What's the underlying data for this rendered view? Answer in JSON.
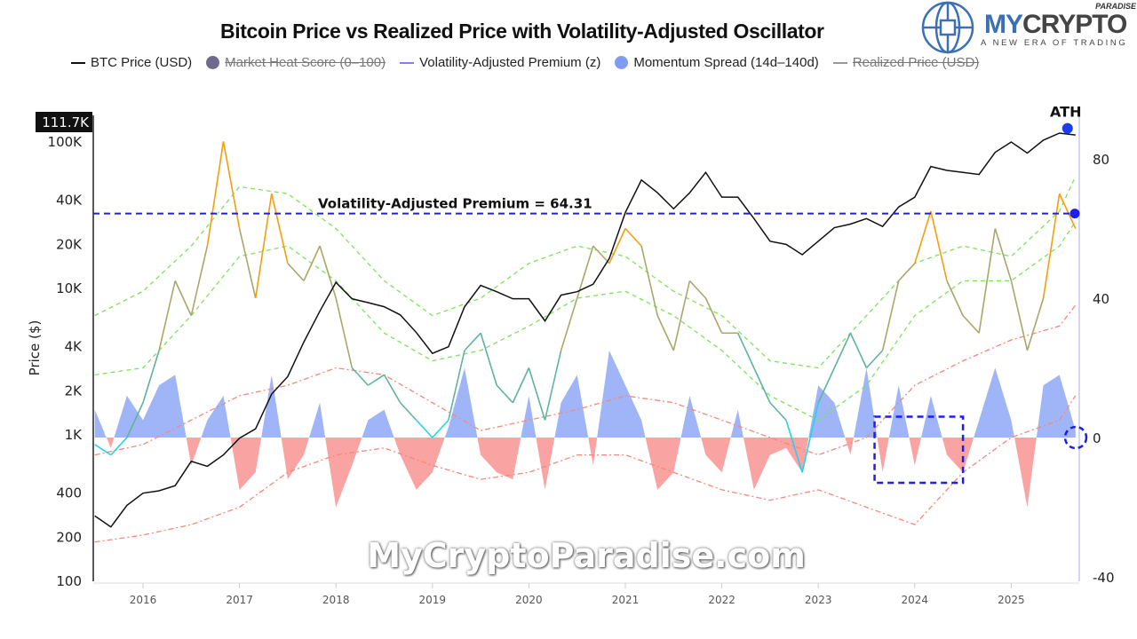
{
  "title": "Bitcoin Price vs Realized Price with Volatility-Adjusted Oscillator",
  "legend": [
    {
      "label": "BTC Price (USD)",
      "swatch": "line",
      "color": "#111111",
      "hidden": false
    },
    {
      "label": "Market Heat Score (0–100)",
      "swatch": "dot",
      "color": "#6e6a8e",
      "hidden": true
    },
    {
      "label": "Volatility-Adjusted Premium (z)",
      "swatch": "line",
      "color": "#8a7cf0",
      "hidden": false
    },
    {
      "label": "Momentum Spread (14d–140d)",
      "swatch": "dot",
      "color": "#7f9cf5",
      "hidden": false
    },
    {
      "label": "Realized Price (USD)",
      "swatch": "line",
      "color": "#999999",
      "hidden": true
    }
  ],
  "logo": {
    "brand_a": "MY",
    "brand_b": "CRYPTO",
    "super": "PARADISE",
    "tagline": "A NEW ERA OF TRADING"
  },
  "watermark": "MyCryptoParadise.com",
  "chart_data": {
    "type": "line",
    "ylabel": "Price ($)",
    "y_left": {
      "scale": "log",
      "range": [
        100,
        133000
      ],
      "ticks": [
        100,
        200,
        400,
        1000,
        2000,
        4000,
        10000,
        20000,
        40000,
        100000
      ],
      "tick_labels": [
        "100",
        "200",
        "400",
        "1K",
        "2K",
        "4K",
        "10K",
        "20K",
        "40K",
        "100K"
      ]
    },
    "y_right": {
      "scale": "linear",
      "range": [
        -40,
        89
      ],
      "ticks": [
        -40,
        0,
        40,
        80
      ],
      "tick_labels": [
        "-40",
        "0",
        "40",
        "80"
      ]
    },
    "x_ticks": [
      "2016",
      "2017",
      "2018",
      "2019",
      "2020",
      "2021",
      "2022",
      "2023",
      "2024",
      "2025"
    ],
    "x_range": [
      "2015-07",
      "2025-09"
    ],
    "grid": false,
    "legend_position": "top",
    "x": [
      "2015-07",
      "2015-09",
      "2015-11",
      "2016-01",
      "2016-03",
      "2016-05",
      "2016-07",
      "2016-09",
      "2016-11",
      "2017-01",
      "2017-03",
      "2017-05",
      "2017-07",
      "2017-09",
      "2017-11",
      "2018-01",
      "2018-03",
      "2018-05",
      "2018-07",
      "2018-09",
      "2018-11",
      "2019-01",
      "2019-03",
      "2019-05",
      "2019-07",
      "2019-09",
      "2019-11",
      "2020-01",
      "2020-03",
      "2020-05",
      "2020-07",
      "2020-09",
      "2020-11",
      "2021-01",
      "2021-03",
      "2021-05",
      "2021-07",
      "2021-09",
      "2021-11",
      "2022-01",
      "2022-03",
      "2022-05",
      "2022-07",
      "2022-09",
      "2022-11",
      "2023-01",
      "2023-03",
      "2023-05",
      "2023-07",
      "2023-09",
      "2023-11",
      "2024-01",
      "2024-03",
      "2024-05",
      "2024-07",
      "2024-09",
      "2024-11",
      "2025-01",
      "2025-03",
      "2025-05",
      "2025-07",
      "2025-09"
    ],
    "series": [
      {
        "name": "BTC Price (USD)",
        "axis": "left",
        "color": "#111111",
        "values": [
          280,
          235,
          330,
          400,
          415,
          450,
          660,
          610,
          730,
          950,
          1100,
          1900,
          2500,
          4300,
          7000,
          11000,
          8500,
          8000,
          7500,
          6600,
          5000,
          3600,
          4000,
          7500,
          10500,
          9500,
          8500,
          8500,
          6000,
          9000,
          9500,
          10700,
          16000,
          33000,
          55000,
          45000,
          35000,
          45000,
          62000,
          42000,
          42000,
          30000,
          21000,
          20000,
          17000,
          21000,
          26000,
          27500,
          30000,
          26500,
          36000,
          42000,
          68000,
          64000,
          62000,
          60000,
          85000,
          100000,
          84000,
          103000,
          115000,
          111700
        ]
      },
      {
        "name": "Volatility-Adjusted Premium (z)",
        "axis": "right",
        "color_scale": [
          "#22d3ee",
          "#5fb3a0",
          "#a8a86a",
          "#f59e0b"
        ],
        "values": [
          -2,
          -5,
          0,
          10,
          25,
          45,
          35,
          55,
          85,
          60,
          40,
          70,
          50,
          45,
          55,
          40,
          20,
          15,
          18,
          10,
          5,
          0,
          5,
          25,
          30,
          15,
          10,
          20,
          5,
          25,
          40,
          55,
          50,
          60,
          55,
          35,
          25,
          45,
          40,
          30,
          30,
          20,
          10,
          5,
          -10,
          10,
          20,
          30,
          20,
          25,
          45,
          50,
          65,
          45,
          35,
          30,
          60,
          45,
          25,
          40,
          70,
          60
        ]
      },
      {
        "name": "Momentum Spread (14d–140d)",
        "axis": "right",
        "color_pos": "#7f9cf5",
        "color_neg": "#f87171",
        "values": [
          8,
          -3,
          12,
          5,
          15,
          18,
          -8,
          5,
          12,
          -15,
          -10,
          18,
          -12,
          -5,
          10,
          -20,
          -8,
          5,
          8,
          -5,
          -15,
          -10,
          3,
          20,
          -5,
          -10,
          -12,
          12,
          -15,
          10,
          18,
          -8,
          25,
          15,
          5,
          -15,
          -10,
          12,
          -5,
          -10,
          8,
          -15,
          -5,
          -3,
          -10,
          15,
          10,
          -5,
          20,
          -10,
          15,
          -8,
          12,
          -5,
          -10,
          5,
          20,
          5,
          -20,
          15,
          18,
          2
        ]
      }
    ],
    "bands": {
      "x": [
        "2015-07",
        "2016-01",
        "2016-07",
        "2017-01",
        "2017-07",
        "2018-01",
        "2018-07",
        "2019-01",
        "2019-07",
        "2020-01",
        "2020-07",
        "2021-01",
        "2021-07",
        "2022-01",
        "2022-07",
        "2023-01",
        "2023-07",
        "2024-01",
        "2024-07",
        "2025-01",
        "2025-07",
        "2025-09"
      ],
      "green_color": "#7ee35a",
      "red_color": "#f8877a",
      "green_upper": [
        35,
        42,
        55,
        72,
        70,
        60,
        45,
        35,
        40,
        50,
        55,
        52,
        42,
        35,
        22,
        20,
        35,
        50,
        55,
        52,
        65,
        75
      ],
      "green_lower": [
        18,
        20,
        35,
        52,
        55,
        45,
        30,
        22,
        25,
        32,
        40,
        42,
        35,
        25,
        12,
        5,
        15,
        35,
        45,
        45,
        55,
        62
      ],
      "red_upper": [
        -5,
        -2,
        5,
        12,
        15,
        20,
        18,
        10,
        2,
        5,
        8,
        12,
        10,
        5,
        0,
        -5,
        0,
        15,
        22,
        28,
        32,
        38
      ],
      "red_lower": [
        -30,
        -28,
        -25,
        -20,
        -10,
        -5,
        -3,
        -8,
        -12,
        -10,
        -5,
        -5,
        -10,
        -15,
        -18,
        -15,
        -20,
        -25,
        -10,
        0,
        5,
        12
      ]
    },
    "annotations": {
      "premium_line": {
        "label": "Volatility-Adjusted Premium = 64.31",
        "value": 64.31,
        "color": "#1d1df0"
      },
      "ath": {
        "label": "ATH",
        "date": "2025-08",
        "value": 124000,
        "color": "#1d3cf0"
      },
      "current_price_tag": "111.7K",
      "zero_label": "0",
      "highlight_box": {
        "x": [
          "2023-08",
          "2024-07"
        ],
        "y": [
          -13,
          6
        ],
        "color": "#1d1df0"
      },
      "highlight_circle": {
        "date": "2025-09",
        "value": 0,
        "color": "#1d1df0"
      }
    }
  }
}
